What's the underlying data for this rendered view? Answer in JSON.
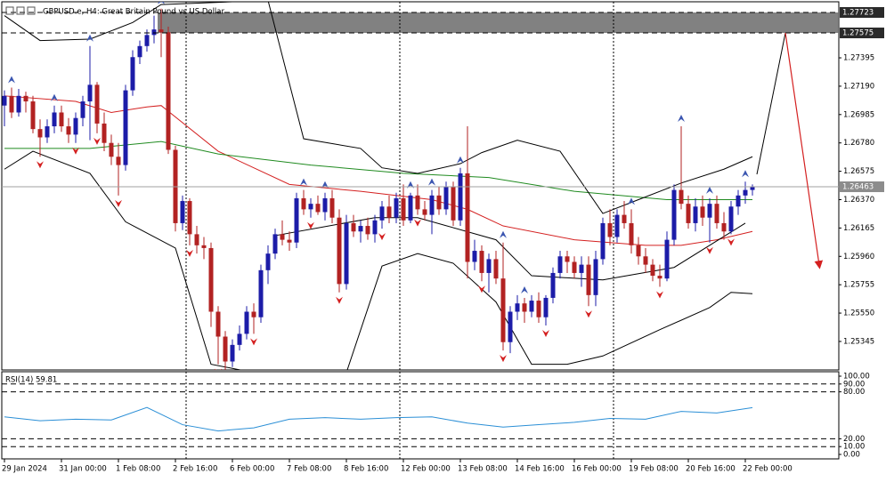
{
  "chart_data": {
    "type": "candlestick",
    "title": "GBPUSD.e, H4:  Great Britain Pound vs US Dollar",
    "up_color": "#1c1ca8",
    "down_color": "#b22222",
    "ylim": [
      1.25139,
      1.27813
    ],
    "yticks": [
      1.27395,
      {
        "value": 1.2719,
        "label": "1.27190"
      },
      1.26985,
      {
        "value": 1.2678,
        "label": "1.26780"
      },
      1.26575,
      {
        "value": 1.2637,
        "label": "1.26370"
      },
      1.26165,
      {
        "value": 1.2596,
        "label": "1.25960"
      },
      1.25755,
      {
        "value": 1.2555,
        "label": "1.25550"
      },
      1.25345
    ],
    "current_price": 1.26463,
    "zone": {
      "from": 22,
      "values": [
        1.27575,
        1.27723
      ]
    },
    "separators": [
      26,
      56,
      86
    ],
    "categories": [
      "29 Jan 2024",
      null,
      null,
      null,
      null,
      null,
      null,
      null,
      "31 Jan 00:00",
      null,
      null,
      null,
      null,
      null,
      null,
      null,
      "1 Feb 08:00",
      null,
      null,
      null,
      null,
      null,
      null,
      null,
      "2 Feb 16:00",
      null,
      null,
      null,
      null,
      null,
      null,
      null,
      "6 Feb 00:00",
      null,
      null,
      null,
      null,
      null,
      null,
      null,
      "7 Feb 08:00",
      null,
      null,
      null,
      null,
      null,
      null,
      null,
      "8 Feb 16:00",
      null,
      null,
      null,
      null,
      null,
      null,
      null,
      "12 Feb 00:00",
      null,
      null,
      null,
      null,
      null,
      null,
      null,
      "13 Feb 08:00",
      null,
      null,
      null,
      null,
      null,
      null,
      null,
      "14 Feb 16:00",
      null,
      null,
      null,
      null,
      null,
      null,
      null,
      "16 Feb 00:00",
      null,
      null,
      null,
      null,
      null,
      null,
      null,
      "19 Feb 08:00",
      null,
      null,
      null,
      null,
      null,
      null,
      null,
      "20 Feb 16:00",
      null,
      null,
      null,
      null,
      null,
      null,
      null,
      "22 Feb 00:00",
      null
    ],
    "candles": [
      [
        1.2705,
        1.2716,
        1.269,
        1.2712
      ],
      [
        1.2712,
        1.2718,
        1.2696,
        1.27
      ],
      [
        1.27,
        1.2717,
        1.2697,
        1.2712
      ],
      [
        1.2712,
        1.2715,
        1.27,
        1.2708
      ],
      [
        1.2708,
        1.2712,
        1.2685,
        1.2688
      ],
      [
        1.2688,
        1.2695,
        1.2668,
        1.2682
      ],
      [
        1.2682,
        1.2695,
        1.2678,
        1.269
      ],
      [
        1.269,
        1.2705,
        1.2685,
        1.27
      ],
      [
        1.27,
        1.2705,
        1.2686,
        1.269
      ],
      [
        1.269,
        1.2696,
        1.2678,
        1.2684
      ],
      [
        1.2684,
        1.27,
        1.2678,
        1.2696
      ],
      [
        1.2696,
        1.2712,
        1.269,
        1.2708
      ],
      [
        1.2708,
        1.2748,
        1.268,
        1.272
      ],
      [
        1.272,
        1.2722,
        1.2685,
        1.2692
      ],
      [
        1.2692,
        1.27,
        1.2672,
        1.2678
      ],
      [
        1.2678,
        1.2684,
        1.2662,
        1.2668
      ],
      [
        1.2668,
        1.2678,
        1.264,
        1.2662
      ],
      [
        1.2662,
        1.272,
        1.2658,
        1.2716
      ],
      [
        1.2716,
        1.2745,
        1.2712,
        1.274
      ],
      [
        1.274,
        1.2752,
        1.2735,
        1.2748
      ],
      [
        1.2748,
        1.276,
        1.2744,
        1.2756
      ],
      [
        1.2756,
        1.277,
        1.275,
        1.276
      ],
      [
        1.276,
        1.2775,
        1.274,
        1.2758
      ],
      [
        1.2758,
        1.2762,
        1.267,
        1.2673
      ],
      [
        1.2673,
        1.2676,
        1.2614,
        1.262
      ],
      [
        1.262,
        1.264,
        1.2615,
        1.2636
      ],
      [
        1.2636,
        1.2638,
        1.2604,
        1.2612
      ],
      [
        1.2612,
        1.2618,
        1.2598,
        1.2604
      ],
      [
        1.2604,
        1.261,
        1.2594,
        1.2602
      ],
      [
        1.2602,
        1.2606,
        1.2545,
        1.2556
      ],
      [
        1.2556,
        1.256,
        1.2518,
        1.2538
      ],
      [
        1.2538,
        1.2542,
        1.2514,
        1.252
      ],
      [
        1.252,
        1.2536,
        1.2516,
        1.2532
      ],
      [
        1.2532,
        1.2546,
        1.2528,
        1.254
      ],
      [
        1.254,
        1.256,
        1.2536,
        1.2556
      ],
      [
        1.2556,
        1.2562,
        1.254,
        1.2552
      ],
      [
        1.2552,
        1.259,
        1.2548,
        1.2586
      ],
      [
        1.2586,
        1.2604,
        1.2576,
        1.2598
      ],
      [
        1.2598,
        1.2616,
        1.2594,
        1.2612
      ],
      [
        1.2612,
        1.2622,
        1.2604,
        1.2608
      ],
      [
        1.2608,
        1.2614,
        1.26,
        1.2606
      ],
      [
        1.2606,
        1.2642,
        1.2602,
        1.2638
      ],
      [
        1.2638,
        1.2644,
        1.2626,
        1.263
      ],
      [
        1.263,
        1.2638,
        1.2624,
        1.2634
      ],
      [
        1.2634,
        1.264,
        1.2626,
        1.2628
      ],
      [
        1.2628,
        1.2642,
        1.2622,
        1.2638
      ],
      [
        1.2638,
        1.2644,
        1.262,
        1.2624
      ],
      [
        1.2624,
        1.263,
        1.257,
        1.2576
      ],
      [
        1.2576,
        1.2626,
        1.2572,
        1.262
      ],
      [
        1.262,
        1.2626,
        1.261,
        1.2614
      ],
      [
        1.2614,
        1.2622,
        1.2606,
        1.2618
      ],
      [
        1.2618,
        1.2624,
        1.2608,
        1.2612
      ],
      [
        1.2612,
        1.2626,
        1.2606,
        1.2622
      ],
      [
        1.2622,
        1.2636,
        1.2616,
        1.2632
      ],
      [
        1.2632,
        1.264,
        1.262,
        1.2624
      ],
      [
        1.2624,
        1.2642,
        1.262,
        1.2638
      ],
      [
        1.2638,
        1.2648,
        1.2618,
        1.2622
      ],
      [
        1.2622,
        1.2642,
        1.262,
        1.264
      ],
      [
        1.264,
        1.2648,
        1.2626,
        1.263
      ],
      [
        1.263,
        1.2636,
        1.2622,
        1.2626
      ],
      [
        1.2626,
        1.2644,
        1.2612,
        1.264
      ],
      [
        1.264,
        1.2646,
        1.2626,
        1.263
      ],
      [
        1.263,
        1.265,
        1.2626,
        1.2646
      ],
      [
        1.2646,
        1.265,
        1.2618,
        1.2622
      ],
      [
        1.2622,
        1.266,
        1.2618,
        1.2656
      ],
      [
        1.2656,
        1.269,
        1.258,
        1.2592
      ],
      [
        1.2592,
        1.2608,
        1.2586,
        1.26
      ],
      [
        1.26,
        1.2604,
        1.2578,
        1.2584
      ],
      [
        1.2584,
        1.2598,
        1.257,
        1.2594
      ],
      [
        1.2594,
        1.26,
        1.2576,
        1.258
      ],
      [
        1.258,
        1.2606,
        1.2528,
        1.2534
      ],
      [
        1.2534,
        1.256,
        1.2526,
        1.2556
      ],
      [
        1.2556,
        1.2568,
        1.255,
        1.2562
      ],
      [
        1.2562,
        1.2566,
        1.2548,
        1.2556
      ],
      [
        1.2556,
        1.2568,
        1.2552,
        1.2564
      ],
      [
        1.2564,
        1.257,
        1.2548,
        1.2552
      ],
      [
        1.2552,
        1.2568,
        1.2546,
        1.2566
      ],
      [
        1.2566,
        1.2588,
        1.2562,
        1.2584
      ],
      [
        1.2584,
        1.26,
        1.258,
        1.2596
      ],
      [
        1.2596,
        1.26,
        1.2584,
        1.2592
      ],
      [
        1.2592,
        1.2596,
        1.258,
        1.2584
      ],
      [
        1.2584,
        1.2596,
        1.2574,
        1.259
      ],
      [
        1.259,
        1.2596,
        1.256,
        1.2568
      ],
      [
        1.2568,
        1.26,
        1.256,
        1.2594
      ],
      [
        1.2594,
        1.2624,
        1.259,
        1.262
      ],
      [
        1.262,
        1.263,
        1.2604,
        1.261
      ],
      [
        1.261,
        1.263,
        1.2606,
        1.2626
      ],
      [
        1.2626,
        1.2636,
        1.2616,
        1.262
      ],
      [
        1.262,
        1.263,
        1.2598,
        1.2604
      ],
      [
        1.2604,
        1.261,
        1.259,
        1.2596
      ],
      [
        1.2596,
        1.2602,
        1.2584,
        1.259
      ],
      [
        1.259,
        1.2594,
        1.2578,
        1.2582
      ],
      [
        1.2582,
        1.259,
        1.2574,
        1.258
      ],
      [
        1.258,
        1.2614,
        1.2578,
        1.2608
      ],
      [
        1.2608,
        1.2648,
        1.2604,
        1.2644
      ],
      [
        1.2644,
        1.269,
        1.263,
        1.2634
      ],
      [
        1.2634,
        1.264,
        1.2616,
        1.262
      ],
      [
        1.262,
        1.2638,
        1.2614,
        1.2632
      ],
      [
        1.2632,
        1.264,
        1.2618,
        1.2624
      ],
      [
        1.2624,
        1.2638,
        1.2606,
        1.2634
      ],
      [
        1.2634,
        1.264,
        1.2616,
        1.262
      ],
      [
        1.262,
        1.2628,
        1.2608,
        1.2614
      ],
      [
        1.2614,
        1.2636,
        1.2612,
        1.2632
      ],
      [
        1.2632,
        1.2644,
        1.2626,
        1.264
      ],
      [
        1.264,
        1.265,
        1.2634,
        1.2644
      ],
      [
        1.2644,
        1.2648,
        1.264,
        1.2646
      ]
    ],
    "fractals_up": [
      1,
      7,
      12,
      22,
      42,
      45,
      57,
      60,
      64,
      70,
      73,
      88,
      95,
      99,
      104
    ],
    "fractals_down": [
      5,
      10,
      13,
      16,
      26,
      30,
      35,
      43,
      47,
      53,
      58,
      67,
      70,
      76,
      82,
      92,
      99,
      102
    ],
    "lines": [
      {
        "color": "#d42020",
        "x": [
          0,
          10,
          15,
          20,
          22,
          30,
          40,
          50,
          60,
          65,
          70,
          80,
          90,
          95,
          100,
          105
        ],
        "values": [
          1.2712,
          1.2708,
          1.27,
          1.2704,
          1.2705,
          1.2672,
          1.2648,
          1.2643,
          1.2637,
          1.263,
          1.2618,
          1.2608,
          1.2604,
          1.2604,
          1.2608,
          1.2614
        ]
      },
      {
        "color": "#1f8a1f",
        "x": [
          0,
          12,
          22,
          30,
          43,
          56,
          68,
          80,
          93,
          105
        ],
        "values": [
          1.2674,
          1.2674,
          1.2679,
          1.267,
          1.2662,
          1.2656,
          1.2653,
          1.2643,
          1.2637,
          1.2637
        ]
      },
      {
        "color": "#000000",
        "x": [
          0,
          5,
          12,
          18,
          22,
          37,
          42,
          50,
          53,
          58,
          64,
          67,
          72,
          78,
          84,
          89,
          95,
          101,
          105
        ],
        "values": [
          1.277,
          1.2752,
          1.2753,
          1.2765,
          1.2778,
          1.2781,
          1.2681,
          1.2674,
          1.266,
          1.2656,
          1.2663,
          1.2671,
          1.268,
          1.2672,
          1.2627,
          1.2637,
          1.2649,
          1.2659,
          1.2668
        ]
      },
      {
        "color": "#000000",
        "x": [
          0,
          4,
          12,
          17,
          24,
          29,
          35,
          48,
          53,
          58,
          63,
          69,
          74,
          79,
          84,
          92,
          99,
          102,
          105
        ],
        "values": [
          1.2659,
          1.2672,
          1.2656,
          1.2621,
          1.2602,
          1.2518,
          1.2512,
          1.2512,
          1.2589,
          1.2598,
          1.2591,
          1.2563,
          1.2518,
          1.2518,
          1.2524,
          1.2543,
          1.2559,
          1.257,
          1.2569
        ]
      },
      {
        "color": "#000000",
        "x": [
          38,
          52,
          58,
          69,
          74,
          84,
          94,
          104
        ],
        "values": [
          1.2611,
          1.2624,
          1.2624,
          1.2608,
          1.2582,
          1.2579,
          1.2588,
          1.262
        ]
      }
    ],
    "rsi": {
      "label": "RSI(14) 59.81",
      "color": "#2b8fd6",
      "ylim": [
        -5.7,
        105.7
      ],
      "yticks": [
        {
          "value": 100,
          "label": "100.00"
        },
        {
          "value": 90,
          "label": "90.00"
        },
        {
          "value": 80,
          "label": "80.00"
        },
        {
          "value": 20,
          "label": "20.00"
        },
        {
          "value": 10,
          "label": "10.00"
        },
        {
          "value": 0,
          "label": "0.00"
        }
      ],
      "x": [
        0,
        5,
        10,
        15,
        20,
        25,
        30,
        35,
        40,
        45,
        50,
        55,
        60,
        65,
        70,
        75,
        80,
        85,
        90,
        95,
        100,
        105
      ],
      "values": [
        48,
        43,
        45,
        44,
        60,
        38,
        30,
        34,
        45,
        47,
        45,
        47,
        48,
        40,
        35,
        38,
        41,
        46,
        45,
        55,
        53,
        59.81
      ]
    }
  }
}
